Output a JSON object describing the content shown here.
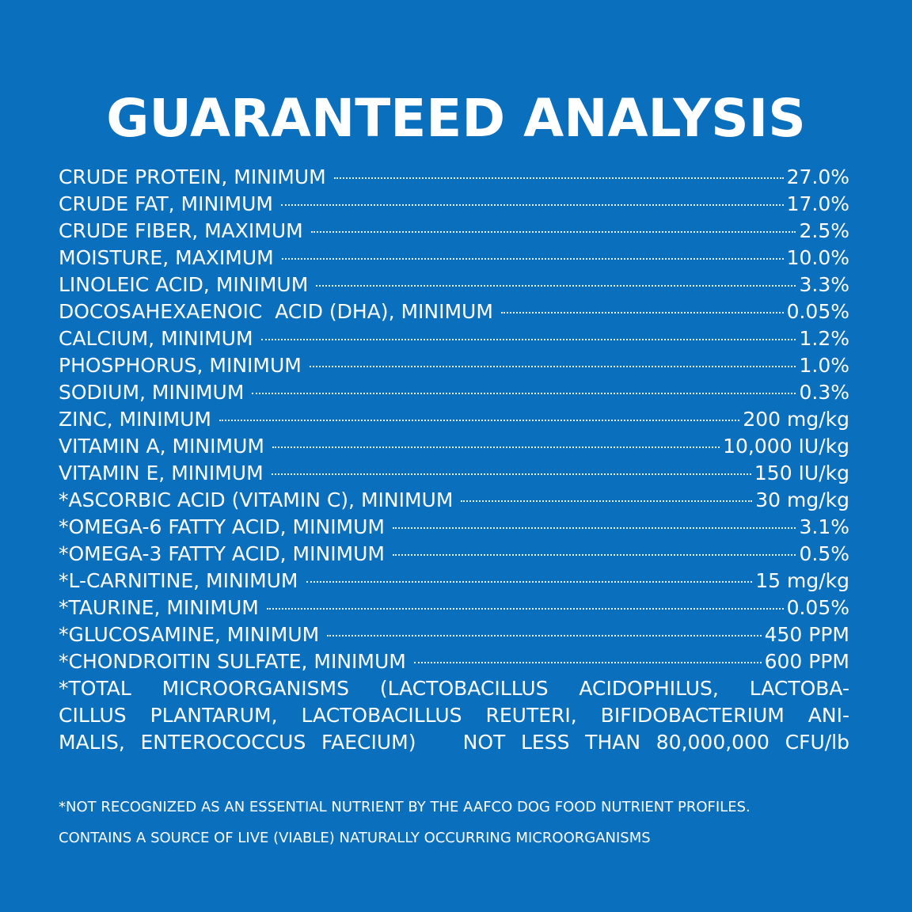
{
  "background_color": "#0a6fbd",
  "text_color": "#ffffff",
  "title": "GUARANTEED ANALYSIS",
  "rows": [
    {
      "label": "CRUDE PROTEIN, MINIMUM",
      "value": "27.0%"
    },
    {
      "label": "CRUDE FAT, MINIMUM",
      "value": "17.0%"
    },
    {
      "label": "CRUDE FIBER, MAXIMUM",
      "value": "2.5%"
    },
    {
      "label": "MOISTURE, MAXIMUM",
      "value": "10.0%"
    },
    {
      "label": "LINOLEIC ACID, MINIMUM",
      "value": "3.3%"
    },
    {
      "label": "DOCOSAHEXAENOIC  ACID (DHA), MINIMUM",
      "value": "0.05%"
    },
    {
      "label": "CALCIUM, MINIMUM",
      "value": "1.2%"
    },
    {
      "label": "PHOSPHORUS, MINIMUM",
      "value": "1.0%"
    },
    {
      "label": "SODIUM, MINIMUM",
      "value": "0.3%"
    },
    {
      "label": "ZINC, MINIMUM",
      "value": "200 mg/kg"
    },
    {
      "label": "VITAMIN A, MINIMUM",
      "value": "10,000 IU/kg"
    },
    {
      "label": "VITAMIN E, MINIMUM",
      "value": "150 IU/kg"
    },
    {
      "label": "*ASCORBIC ACID (VITAMIN C), MINIMUM",
      "value": "30 mg/kg"
    },
    {
      "label": "*OMEGA-6 FATTY ACID, MINIMUM",
      "value": "3.1%"
    },
    {
      "label": "*OMEGA-3 FATTY ACID, MINIMUM",
      "value": "0.5%"
    },
    {
      "label": "*L-CARNITINE, MINIMUM",
      "value": "15 mg/kg"
    },
    {
      "label": "*TAURINE, MINIMUM",
      "value": "0.05%"
    },
    {
      "label": "*GLUCOSAMINE, MINIMUM",
      "value": "450 PPM"
    },
    {
      "label": "*CHONDROITIN SULFATE, MINIMUM",
      "value": "600 PPM"
    }
  ],
  "microorganisms": {
    "line1": "*TOTAL  MICROORGANISMS  (LACTOBACILLUS  ACIDOPHILUS,  LACTOBA-",
    "line2": "CILLUS PLANTARUM, LACTOBACILLUS REUTERI, BIFIDOBACTERIUM ANI-",
    "line3": "MALIS, ENTEROCOCCUS FAECIUM)   NOT LESS THAN 80,000,000 CFU/lb"
  },
  "footnotes": {
    "aafco": "*NOT RECOGNIZED AS AN ESSENTIAL NUTRIENT BY THE AAFCO DOG FOOD NUTRIENT PROFILES.",
    "live": "CONTAINS A SOURCE OF LIVE (VIABLE) NATURALLY OCCURRING MICROORGANISMS"
  }
}
